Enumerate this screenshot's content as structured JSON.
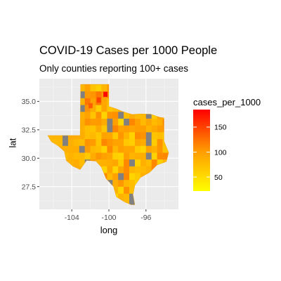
{
  "chart_data": {
    "type": "heatmap",
    "title": "COVID-19 Cases per 1000 People",
    "subtitle": "Only counties reporting 100+ cases",
    "xlabel": "long",
    "ylabel": "lat",
    "x_ticks": [
      "-104",
      "-100",
      "-96"
    ],
    "y_ticks": [
      "27.5",
      "30.0",
      "32.5",
      "35.0"
    ],
    "xlim": [
      -107.5,
      -92.5
    ],
    "ylim": [
      25.5,
      37.0
    ],
    "grid": true,
    "legend": {
      "title": "cases_per_1000",
      "position": "right",
      "ticks": [
        "50",
        "100",
        "150"
      ],
      "range": [
        22,
        185
      ],
      "colors": {
        "low": "#FFFF00",
        "mid": "#FF9900",
        "high": "#FF0000",
        "missing": "#808080"
      }
    },
    "colors": {
      "panel": "#EBEBEB",
      "grid_major": "#FFFFFF",
      "grid_minor": "#F5F5F5",
      "missing": "#808080"
    }
  }
}
